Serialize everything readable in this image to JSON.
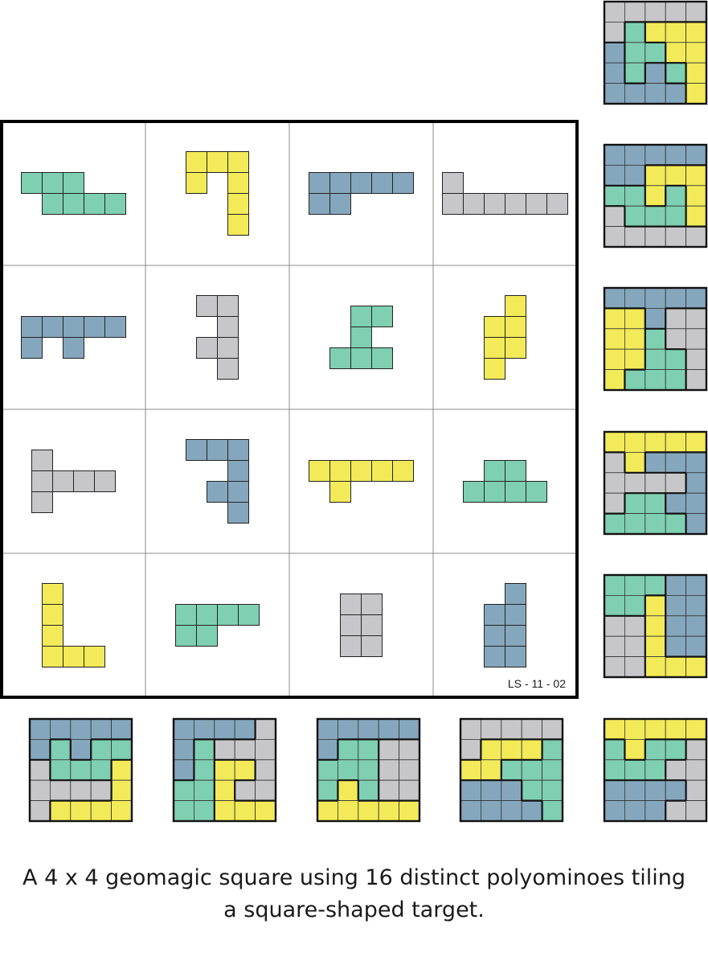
{
  "colors": {
    "teal": "#7fcfb2",
    "yellow": "#f2ea58",
    "blue": "#85a7bd",
    "gray": "#c7c7c9",
    "grid_border": "#000000",
    "cell_line": "#8c8c8c"
  },
  "square_id": "LS - 11 - 02",
  "caption": {
    "line1": "A 4 x 4 geomagic square using 16 distinct polyominoes tiling",
    "line2": "a square-shaped target."
  },
  "grid": [
    [
      {
        "color": "teal",
        "cells": [
          "###..",
          ".####"
        ]
      },
      {
        "color": "yellow",
        "cells": [
          "###",
          "#.#",
          "..#",
          "..#"
        ]
      },
      {
        "color": "blue",
        "cells": [
          "#####",
          "##..."
        ]
      },
      {
        "color": "gray",
        "cells": [
          "#.....",
          "######"
        ]
      }
    ],
    [
      {
        "color": "blue",
        "cells": [
          "#####",
          "#.#.."
        ]
      },
      {
        "color": "gray",
        "cells": [
          "##",
          ".#",
          "##",
          ".#"
        ]
      },
      {
        "color": "teal",
        "cells": [
          ".##",
          ".#.",
          "###"
        ]
      },
      {
        "color": "yellow",
        "cells": [
          ".#",
          "##",
          "##",
          "#."
        ]
      }
    ],
    [
      {
        "color": "gray",
        "cells": [
          "#...",
          "####",
          "#..."
        ]
      },
      {
        "color": "blue",
        "cells": [
          "###",
          "..#",
          ".##",
          "..#"
        ]
      },
      {
        "color": "yellow",
        "cells": [
          "#####",
          ".#..."
        ]
      },
      {
        "color": "teal",
        "cells": [
          ".##.",
          "####"
        ]
      }
    ],
    [
      {
        "color": "yellow",
        "cells": [
          "#..",
          "#..",
          "#..",
          "###"
        ]
      },
      {
        "color": "teal",
        "cells": [
          "####",
          "##.."
        ]
      },
      {
        "color": "gray",
        "cells": [
          "##",
          "##",
          "##"
        ]
      },
      {
        "color": "blue",
        "cells": [
          ".#",
          "##",
          "##",
          "##"
        ]
      }
    ]
  ],
  "right_column": [
    {
      "colors": [
        "GGGGG",
        "GTYYY",
        "BTTYY",
        "BTBTY",
        "BBBBY"
      ]
    },
    {
      "colors": [
        "BBBBB",
        "BBYYY",
        "TTYTY",
        "GTTTY",
        "GGGGG"
      ]
    },
    {
      "colors": [
        "BBBBB",
        "YYBGG",
        "YYTGG",
        "YYTTG",
        "YTTTG"
      ]
    },
    {
      "colors": [
        "YYYYY",
        "GYBBB",
        "GGGGB",
        "GTTBB",
        "TTTTB"
      ]
    },
    {
      "colors": [
        "TTTBB",
        "TTYBB",
        "GGYBB",
        "GGYBB",
        "GGYYY"
      ]
    }
  ],
  "bottom_row": [
    {
      "colors": [
        "BBBBB",
        "BTBTT",
        "GTTTY",
        "GGGGY",
        "GYYYY"
      ]
    },
    {
      "colors": [
        "BBBBG",
        "BTGGG",
        "BTYYG",
        "TTYGG",
        "TTYYY"
      ]
    },
    {
      "colors": [
        "BBBBB",
        "BTTGG",
        "TTTGG",
        "TYTGG",
        "YYYYY"
      ]
    },
    {
      "colors": [
        "GGGGG",
        "GYYYT",
        "YYTTT",
        "BBBTT",
        "BBBBT"
      ]
    },
    {
      "colors": [
        "YYYYY",
        "TYTTG",
        "TTTGG",
        "BBBBG",
        "BBBGG"
      ]
    }
  ]
}
